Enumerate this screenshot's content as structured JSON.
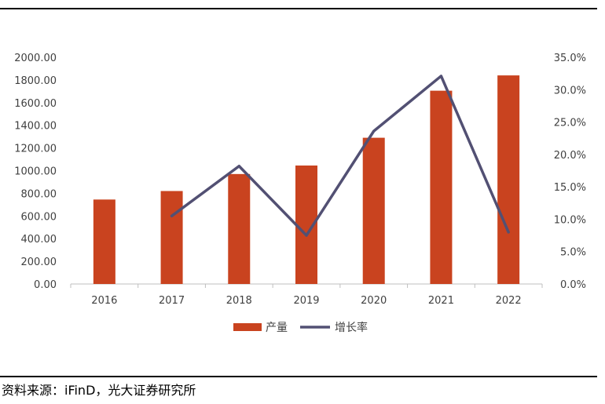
{
  "source_note": "资料来源：iFinD，光大证券研究所",
  "chart_data": {
    "type": "bar",
    "title": "",
    "xlabel": "",
    "categories": [
      "2016",
      "2017",
      "2018",
      "2019",
      "2020",
      "2021",
      "2022"
    ],
    "series": [
      {
        "name": "产量",
        "type": "bar",
        "axis": "left",
        "color": "#C9431F",
        "values": [
          745,
          820,
          970,
          1045,
          1290,
          1705,
          1840
        ]
      },
      {
        "name": "增长率",
        "type": "line",
        "axis": "right",
        "color": "#525073",
        "values": [
          null,
          10.5,
          18.2,
          7.5,
          23.6,
          32.1,
          8.0
        ]
      }
    ],
    "y_left": {
      "min": 0,
      "max": 2000,
      "step": 200,
      "tick_labels": [
        "0.00",
        "200.00",
        "400.00",
        "600.00",
        "800.00",
        "1000.00",
        "1200.00",
        "1400.00",
        "1600.00",
        "1800.00",
        "2000.00"
      ]
    },
    "y_right": {
      "min": 0,
      "max": 35,
      "step": 5,
      "tick_labels": [
        "0.0%",
        "5.0%",
        "10.0%",
        "15.0%",
        "20.0%",
        "25.0%",
        "30.0%",
        "35.0%"
      ]
    },
    "grid": false,
    "legend": "bottom-center"
  }
}
